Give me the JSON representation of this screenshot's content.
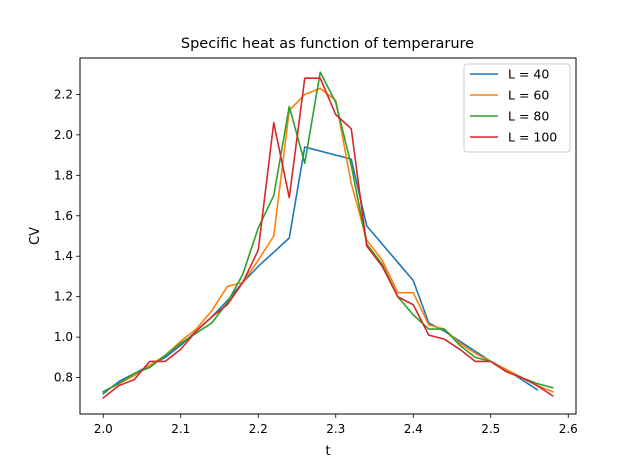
{
  "chart_data": {
    "type": "line",
    "title": "Specific heat as function of temperarure",
    "xlabel": "t",
    "ylabel": "CV",
    "xlim": [
      1.97,
      2.61
    ],
    "ylim": [
      0.62,
      2.38
    ],
    "xticks": [
      "2.0",
      "2.1",
      "2.2",
      "2.3",
      "2.4",
      "2.5",
      "2.6"
    ],
    "yticks": [
      "0.8",
      "1.0",
      "1.2",
      "1.4",
      "1.6",
      "1.8",
      "2.0",
      "2.2"
    ],
    "grid": false,
    "legend_position": "top-right",
    "series": [
      {
        "name": "L = 40",
        "color": "#1f77b4",
        "x": [
          2.0,
          2.02,
          2.04,
          2.06,
          2.08,
          2.1,
          2.12,
          2.14,
          2.16,
          2.18,
          2.2,
          2.22,
          2.24,
          2.26,
          2.28,
          2.3,
          2.32,
          2.34,
          2.36,
          2.38,
          2.4,
          2.42,
          2.44,
          2.46,
          2.48,
          2.5,
          2.52,
          2.54,
          2.56
        ],
        "y": [
          0.72,
          0.78,
          0.82,
          0.86,
          0.9,
          0.96,
          1.03,
          1.1,
          1.18,
          1.27,
          1.35,
          1.42,
          1.49,
          1.94,
          1.92,
          1.9,
          1.88,
          1.55,
          1.46,
          1.37,
          1.28,
          1.07,
          1.03,
          0.98,
          0.93,
          0.88,
          0.84,
          0.79,
          0.74
        ]
      },
      {
        "name": "L = 60",
        "color": "#ff7f0e",
        "x": [
          2.0,
          2.02,
          2.04,
          2.06,
          2.08,
          2.1,
          2.12,
          2.14,
          2.16,
          2.18,
          2.2,
          2.22,
          2.24,
          2.26,
          2.28,
          2.3,
          2.32,
          2.34,
          2.36,
          2.38,
          2.4,
          2.42,
          2.44,
          2.46,
          2.48,
          2.5,
          2.52,
          2.54,
          2.56,
          2.58
        ],
        "y": [
          0.73,
          0.77,
          0.81,
          0.86,
          0.91,
          0.98,
          1.04,
          1.13,
          1.25,
          1.27,
          1.38,
          1.5,
          2.12,
          2.2,
          2.23,
          2.17,
          1.76,
          1.48,
          1.38,
          1.22,
          1.22,
          1.06,
          1.04,
          0.97,
          0.92,
          0.88,
          0.84,
          0.8,
          0.76,
          0.73
        ]
      },
      {
        "name": "L = 80",
        "color": "#2ca02c",
        "x": [
          2.0,
          2.02,
          2.04,
          2.06,
          2.08,
          2.1,
          2.12,
          2.14,
          2.16,
          2.18,
          2.2,
          2.22,
          2.24,
          2.26,
          2.28,
          2.3,
          2.32,
          2.34,
          2.36,
          2.38,
          2.4,
          2.42,
          2.44,
          2.46,
          2.48,
          2.5,
          2.52,
          2.54,
          2.56,
          2.58
        ],
        "y": [
          0.73,
          0.77,
          0.82,
          0.85,
          0.91,
          0.97,
          1.02,
          1.07,
          1.17,
          1.31,
          1.54,
          1.7,
          2.14,
          1.86,
          2.31,
          2.16,
          1.85,
          1.46,
          1.36,
          1.2,
          1.11,
          1.04,
          1.04,
          0.96,
          0.9,
          0.88,
          0.83,
          0.8,
          0.77,
          0.75
        ]
      },
      {
        "name": "L = 100",
        "color": "#d62728",
        "x": [
          2.0,
          2.02,
          2.04,
          2.06,
          2.08,
          2.1,
          2.12,
          2.14,
          2.16,
          2.18,
          2.2,
          2.22,
          2.24,
          2.26,
          2.28,
          2.3,
          2.32,
          2.34,
          2.36,
          2.38,
          2.4,
          2.42,
          2.44,
          2.46,
          2.48,
          2.5,
          2.52,
          2.54,
          2.56,
          2.58
        ],
        "y": [
          0.7,
          0.76,
          0.79,
          0.88,
          0.88,
          0.94,
          1.03,
          1.1,
          1.16,
          1.27,
          1.43,
          2.06,
          1.69,
          2.28,
          2.28,
          2.1,
          2.03,
          1.45,
          1.35,
          1.2,
          1.16,
          1.01,
          0.99,
          0.94,
          0.88,
          0.88,
          0.83,
          0.8,
          0.76,
          0.71
        ]
      }
    ]
  }
}
